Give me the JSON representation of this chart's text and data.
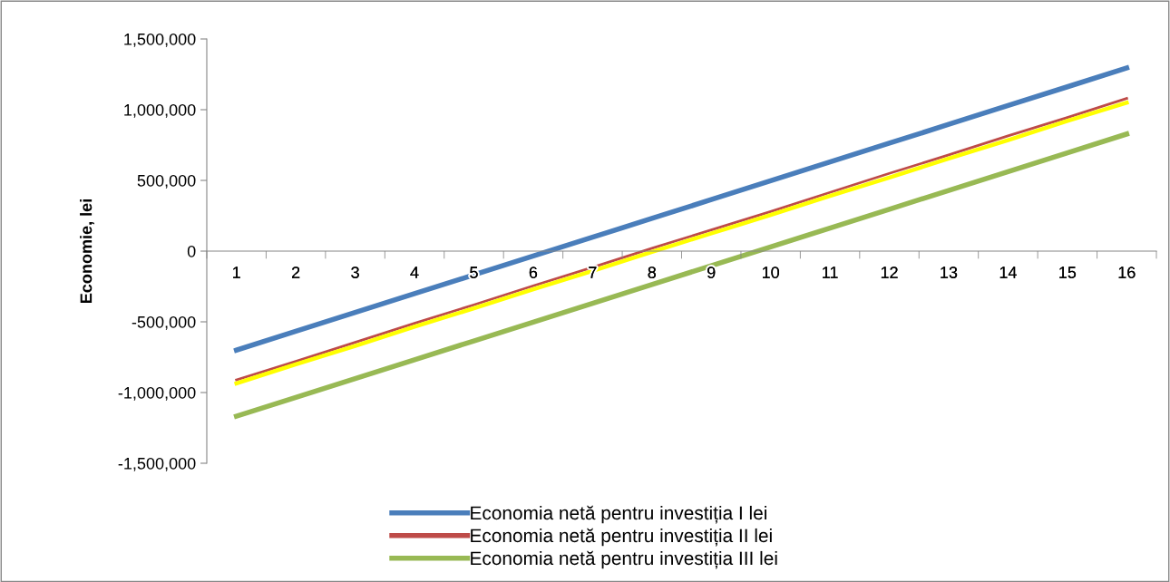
{
  "chart_data": {
    "type": "line",
    "ylabel": "Economie, lei",
    "categories": [
      "1",
      "2",
      "3",
      "4",
      "5",
      "6",
      "7",
      "8",
      "9",
      "10",
      "11",
      "12",
      "13",
      "14",
      "15",
      "16"
    ],
    "series": [
      {
        "name": "Economia netă pentru investiția I lei",
        "color": "#4a7ebb",
        "values": [
          -700000,
          -567000,
          -434000,
          -301000,
          -168000,
          -35000,
          98000,
          231000,
          364000,
          497000,
          630000,
          763000,
          896000,
          1029000,
          1162000,
          1295000
        ]
      },
      {
        "name": "Economia netă pentru investiția II lei",
        "color": "#be4b48",
        "values": [
          -910000,
          -780000,
          -645000,
          -510000,
          -380000,
          -245000,
          -115000,
          20000,
          150000,
          280000,
          415000,
          550000,
          680000,
          815000,
          945000,
          1080000
        ]
      },
      {
        "color": "#ffff00",
        "values": [
          -935000,
          -800000,
          -670000,
          -535000,
          -405000,
          -270000,
          -140000,
          -5000,
          125000,
          255000,
          390000,
          520000,
          655000,
          785000,
          920000,
          1050000
        ]
      },
      {
        "name": "Economia netă pentru investiția III lei",
        "color": "#98b954",
        "values": [
          -1167000,
          -1034000,
          -901000,
          -768000,
          -635000,
          -502000,
          -369000,
          -236000,
          -103000,
          30000,
          163000,
          296000,
          429000,
          562000,
          695000,
          828000
        ]
      }
    ],
    "ylim": [
      -1500000,
      1500000
    ],
    "yticks": [
      {
        "value": -1500000,
        "label": "-1,500,000"
      },
      {
        "value": -1000000,
        "label": "-1,000,000"
      },
      {
        "value": -500000,
        "label": "-500,000"
      },
      0,
      {
        "value": 500000,
        "label": "500,000"
      },
      {
        "value": 1000000,
        "label": "1,000,000"
      },
      {
        "value": 1500000,
        "label": "1,500,000"
      }
    ],
    "grid": false,
    "legend": "bottom",
    "marker": "none",
    "line_style": "solid"
  }
}
